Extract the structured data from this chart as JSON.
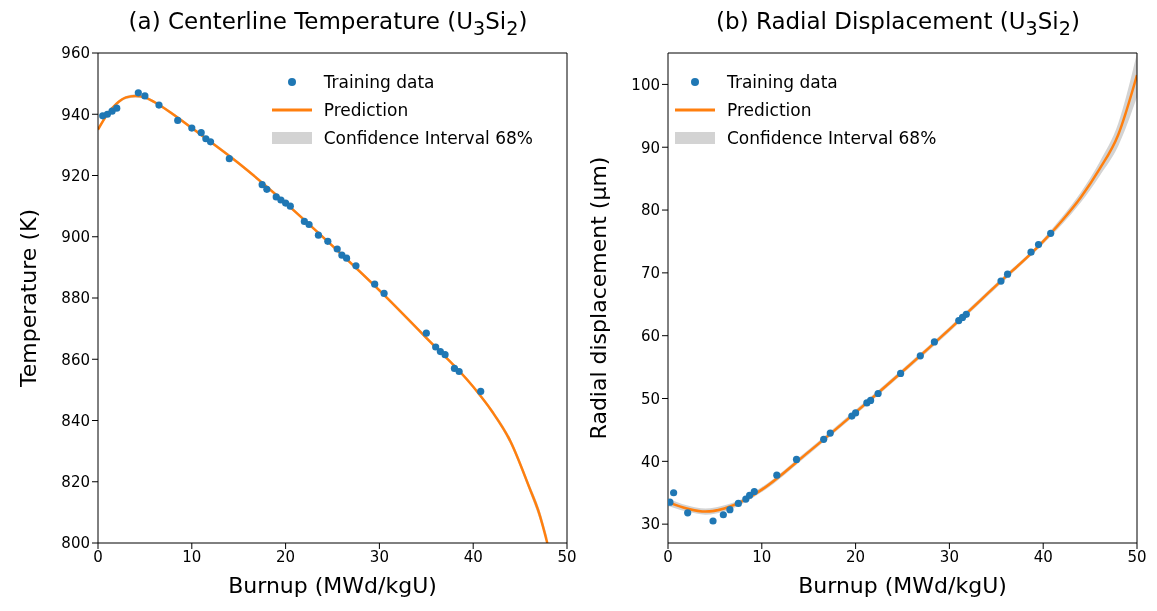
{
  "chart_data": [
    {
      "type": "scatter",
      "title": "(a) Centerline Temperature (U$_{3}$Si$_{2}$)",
      "xlabel": "Burnup (MWd/kgU)",
      "ylabel": "Temperature (K)",
      "xlim": [
        0,
        50
      ],
      "xticks": [
        0,
        10,
        20,
        30,
        40,
        50
      ],
      "ylim": [
        800,
        960
      ],
      "yticks": [
        800,
        820,
        840,
        860,
        880,
        900,
        920,
        940,
        960
      ],
      "grid": false,
      "legend": "top right",
      "annotations": [
        "Confidence Interval 68%"
      ],
      "series": [
        {
          "name": "Training data",
          "type": "scatter",
          "color": "#1f77b4",
          "x": [
            0.5,
            1,
            1.5,
            2,
            4.3,
            5,
            6.5,
            8.5,
            10,
            11,
            11.5,
            12,
            14,
            17.5,
            18,
            19,
            19.5,
            20,
            20.5,
            22,
            22.5,
            23.5,
            24.5,
            25.5,
            26,
            26.5,
            27.5,
            29.5,
            30.5,
            35,
            36,
            36.5,
            37,
            38,
            38.5,
            40.8
          ],
          "values": [
            939.5,
            940,
            941,
            942,
            947,
            946,
            943,
            938,
            935.5,
            934,
            932,
            931,
            925.5,
            917,
            915.5,
            913,
            912,
            911,
            910,
            905,
            904,
            900.5,
            898.5,
            896,
            894,
            893,
            890.5,
            884.5,
            881.5,
            868.5,
            864,
            862.5,
            861.5,
            857,
            856,
            849.5
          ]
        },
        {
          "name": "Prediction",
          "type": "line",
          "color": "#ff7f0e",
          "x": [
            0,
            1,
            2,
            3,
            4,
            5,
            6,
            8,
            10,
            15,
            20,
            25,
            30,
            35,
            40,
            42,
            44,
            46,
            47,
            47.9
          ],
          "values": [
            935,
            940,
            943.5,
            945.5,
            946,
            945.5,
            944,
            940,
            935.5,
            924,
            911,
            897,
            882.5,
            867,
            851,
            843,
            833,
            818,
            810,
            800
          ],
          "lower": [
            934.5,
            939.5,
            943,
            945,
            945.5,
            945,
            943.5,
            939.5,
            935,
            923.5,
            910.5,
            896.5,
            882,
            866.5,
            850.5,
            842.3,
            832,
            816.8,
            808.5,
            800
          ],
          "upper": [
            935.5,
            940.5,
            944,
            946,
            946.5,
            946,
            944.5,
            940.5,
            936,
            924.5,
            911.5,
            897.5,
            883,
            867.5,
            851.5,
            843.7,
            834,
            819.2,
            811.5,
            802
          ]
        }
      ]
    },
    {
      "type": "scatter",
      "title": "(b) Radial Displacement (U$_{3}$Si$_{2}$)",
      "xlabel": "Burnup (MWd/kgU)",
      "ylabel": "Radial displacement (μm)",
      "xlim": [
        0,
        50
      ],
      "xticks": [
        0,
        10,
        20,
        30,
        40,
        50
      ],
      "ylim": [
        27,
        105
      ],
      "yticks": [
        30,
        40,
        50,
        60,
        70,
        80,
        90,
        100
      ],
      "grid": false,
      "legend": "top left",
      "annotations": [
        "Confidence Interval 68%"
      ],
      "series": [
        {
          "name": "Training data",
          "type": "scatter",
          "color": "#1f77b4",
          "x": [
            0.2,
            0.6,
            2.1,
            4.8,
            5.9,
            6.6,
            7.5,
            8.3,
            8.7,
            9.2,
            11.6,
            13.7,
            16.6,
            17.3,
            19.6,
            20,
            21.2,
            21.6,
            22.4,
            24.8,
            26.9,
            28.4,
            31,
            31.4,
            31.8,
            35.5,
            36.2,
            38.7,
            39.5,
            40.8
          ],
          "values": [
            33.5,
            35,
            31.8,
            30.5,
            31.5,
            32.3,
            33.3,
            34,
            34.6,
            35.2,
            37.8,
            40.3,
            43.5,
            44.5,
            47.2,
            47.7,
            49.3,
            49.7,
            50.8,
            54,
            56.8,
            59,
            62.4,
            62.9,
            63.4,
            68.7,
            69.8,
            73.3,
            74.5,
            76.3
          ]
        },
        {
          "name": "Prediction",
          "type": "line",
          "color": "#ff7f0e",
          "x": [
            0,
            2,
            4,
            6,
            8,
            10,
            15,
            20,
            25,
            30,
            35,
            40,
            42,
            44,
            46,
            48,
            50
          ],
          "values": [
            33.5,
            32.5,
            32,
            32.5,
            33.7,
            35.5,
            41.5,
            47.8,
            54.3,
            61,
            68,
            75,
            78.3,
            82,
            86.5,
            92,
            101.5
          ],
          "lower": [
            32.9,
            32,
            31.5,
            32,
            33.3,
            35.1,
            41.1,
            47.4,
            53.9,
            60.6,
            67.6,
            74.6,
            77.7,
            81.2,
            85.4,
            90.2,
            98
          ],
          "upper": [
            34.1,
            33,
            32.5,
            33,
            34.1,
            35.9,
            41.9,
            48.2,
            54.7,
            61.4,
            68.4,
            75.4,
            78.9,
            82.8,
            87.6,
            93.8,
            105
          ]
        }
      ]
    }
  ]
}
